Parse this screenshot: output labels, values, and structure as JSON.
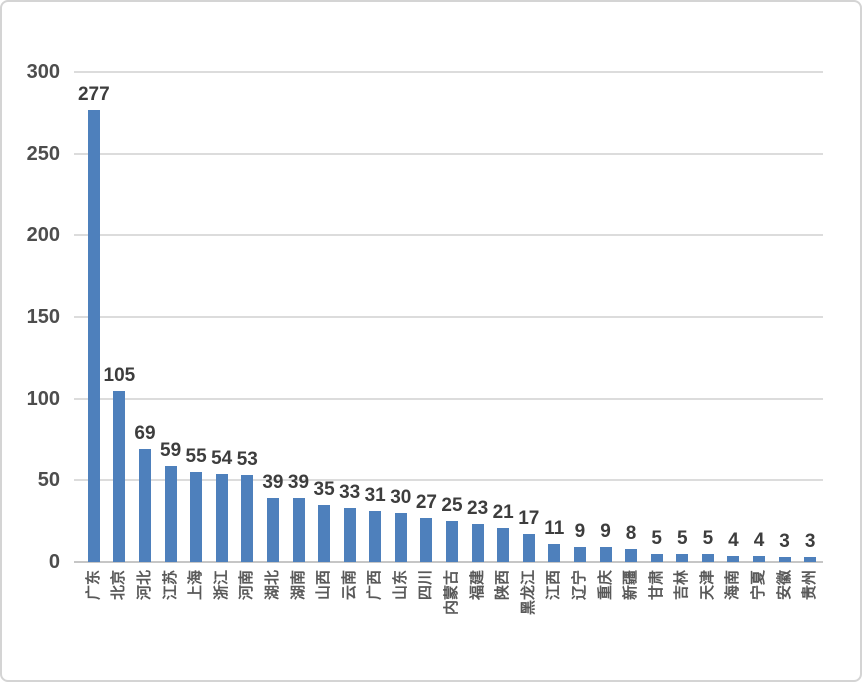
{
  "chart_data": {
    "type": "bar",
    "title": "",
    "xlabel": "",
    "ylabel": "",
    "categories": [
      "广东",
      "北京",
      "河北",
      "江苏",
      "上海",
      "浙江",
      "河南",
      "湖北",
      "湖南",
      "山西",
      "云南",
      "广西",
      "山东",
      "四川",
      "内蒙古",
      "福建",
      "陕西",
      "黑龙江",
      "江西",
      "辽宁",
      "重庆",
      "新疆",
      "甘肃",
      "吉林",
      "天津",
      "海南",
      "宁夏",
      "安徽",
      "贵州"
    ],
    "values": [
      277,
      105,
      69,
      59,
      55,
      54,
      53,
      39,
      39,
      35,
      33,
      31,
      30,
      27,
      25,
      23,
      21,
      17,
      11,
      9,
      9,
      8,
      5,
      5,
      5,
      4,
      4,
      3,
      3
    ],
    "ylim": [
      0,
      300
    ],
    "yticks": [
      0,
      50,
      100,
      150,
      200,
      250,
      300
    ],
    "grid": true,
    "legend": false,
    "data_labels": true,
    "bar_color": "#4e80bc",
    "gridline_color": "#dcdcdc",
    "axis_color": "#c6c6c6",
    "label_color": "#3d3d3d",
    "tick_color": "#4d4d4d"
  }
}
